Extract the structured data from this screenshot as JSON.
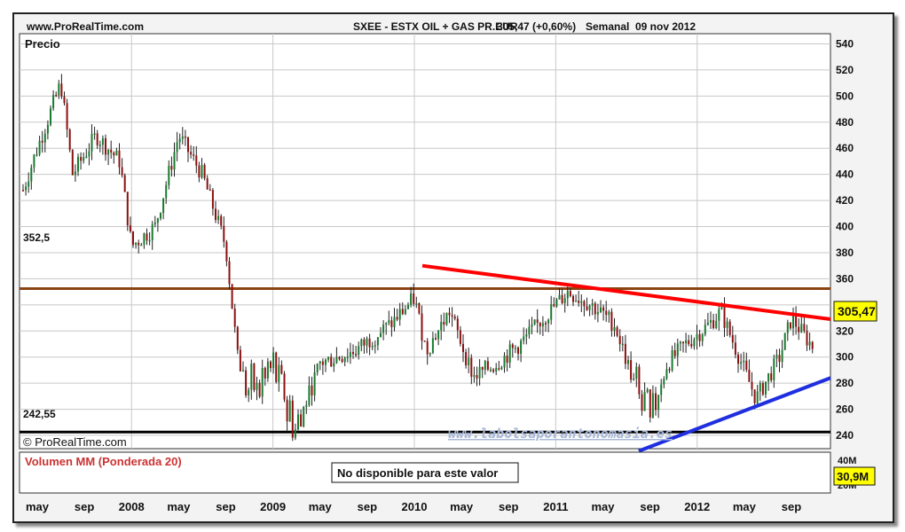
{
  "header": {
    "site": "www.ProRealTime.com",
    "instrument": "SXEE - ESTX OIL + GAS PR.EUR",
    "quote": "305,47 (+0,60%)",
    "period": "Semanal",
    "date": "09 nov 2012"
  },
  "price_panel": {
    "label": "Precio",
    "watermark": "© ProRealTime.com",
    "site_text": "www.labolsaporantonomasia.es",
    "level_labels": [
      "352,5",
      "242,55"
    ],
    "last_price_badge": "305,47"
  },
  "volume_panel": {
    "label": "Volumen MM (Ponderada 20)",
    "message": "No disponible para este valor",
    "badge": "30,9M",
    "axis_labels": [
      "40M",
      "20M"
    ]
  },
  "colors": {
    "background": "#ffffff",
    "level_line": "#8b4513",
    "support_line": "#000000",
    "resistance_trend": "#ff0000",
    "support_trend": "#1f2fe0",
    "candle_up": "#1a7a2e",
    "candle_down": "#8b1010",
    "badge": "#ffff00",
    "volume_label": "#cc3333"
  },
  "chart_data": {
    "type": "candlestick",
    "title": "SXEE - ESTX OIL + GAS PR.EUR",
    "ylabel": "Precio",
    "ylim": [
      230,
      550
    ],
    "y_ticks": [
      240,
      260,
      280,
      300,
      320,
      340,
      360,
      380,
      400,
      420,
      440,
      460,
      480,
      500,
      520,
      540
    ],
    "x_ticks": [
      "may",
      "sep",
      "2008",
      "may",
      "sep",
      "2009",
      "may",
      "sep",
      "2010",
      "may",
      "sep",
      "2011",
      "may",
      "sep",
      "2012",
      "may",
      "sep"
    ],
    "grid": true,
    "series": [
      {
        "name": "SXEE weekly",
        "close_path": [
          [
            "2007-03",
            428
          ],
          [
            "2007-05",
            460
          ],
          [
            "2007-07",
            510
          ],
          [
            "2007-08",
            440
          ],
          [
            "2007-10",
            470
          ],
          [
            "2007-12",
            450
          ],
          [
            "2008-01",
            385
          ],
          [
            "2008-03",
            400
          ],
          [
            "2008-05",
            470
          ],
          [
            "2008-07",
            440
          ],
          [
            "2008-09",
            385
          ],
          [
            "2008-10",
            300
          ],
          [
            "2008-11",
            270
          ],
          [
            "2009-01",
            290
          ],
          [
            "2009-03",
            245
          ],
          [
            "2009-05",
            295
          ],
          [
            "2009-08",
            305
          ],
          [
            "2009-11",
            325
          ],
          [
            "2010-01",
            345
          ],
          [
            "2010-02",
            305
          ],
          [
            "2010-04",
            335
          ],
          [
            "2010-06",
            285
          ],
          [
            "2010-08",
            295
          ],
          [
            "2010-10",
            310
          ],
          [
            "2010-12",
            330
          ],
          [
            "2011-02",
            350
          ],
          [
            "2011-04",
            340
          ],
          [
            "2011-06",
            325
          ],
          [
            "2011-08",
            270
          ],
          [
            "2011-09",
            250
          ],
          [
            "2011-10",
            290
          ],
          [
            "2011-12",
            310
          ],
          [
            "2012-02",
            325
          ],
          [
            "2012-03",
            335
          ],
          [
            "2012-05",
            290
          ],
          [
            "2012-06",
            268
          ],
          [
            "2012-08",
            300
          ],
          [
            "2012-09",
            330
          ],
          [
            "2012-11",
            305.47
          ]
        ]
      }
    ],
    "horizontal_levels": [
      {
        "label": "352,5",
        "value": 352.5
      },
      {
        "label": "242,55",
        "value": 242.55
      }
    ],
    "trendlines": [
      {
        "name": "resistance",
        "from": [
          "2010-01",
          370
        ],
        "to": [
          "2012-12",
          329
        ]
      },
      {
        "name": "support",
        "from": [
          "2011-09",
          228
        ],
        "to": [
          "2012-12",
          284
        ]
      }
    ]
  }
}
